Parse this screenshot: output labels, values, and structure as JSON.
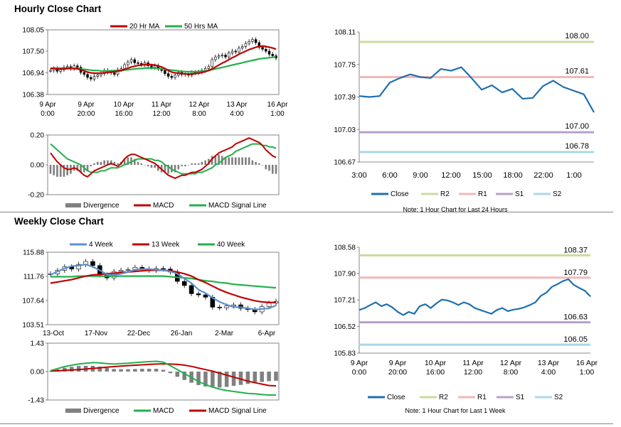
{
  "titles": {
    "hourly": "Hourly Close Chart",
    "weekly": "Weekly Close Chart"
  },
  "colors": {
    "ma_fast": "#c00000",
    "ma_slow": "#22b04b",
    "close": "#1f6fb0",
    "r2": "#c9dc9c",
    "r1": "#f2b8b8",
    "s1": "#b8a0cc",
    "s2": "#a8d8e8",
    "divergence": "#808080",
    "candle": "#000000"
  },
  "chart_data": [
    {
      "id": "hourly-price",
      "type": "candlestick",
      "legend": [
        "20 Hr MA",
        "50 Hrs MA"
      ],
      "yticks": [
        "108.05",
        "107.50",
        "106.94",
        "106.38"
      ],
      "ylim": [
        106.38,
        108.05
      ],
      "xticks": [
        [
          "9 Apr",
          "0:00"
        ],
        [
          "9 Apr",
          "20:00"
        ],
        [
          "10 Apr",
          "16:00"
        ],
        [
          "11 Apr",
          "12:00"
        ],
        [
          "12 Apr",
          "8:00"
        ],
        [
          "13 Apr",
          "4:00"
        ],
        [
          "16 Apr",
          "1:00"
        ]
      ],
      "close": [
        107.0,
        107.05,
        106.98,
        107.02,
        107.08,
        107.1,
        107.05,
        107.12,
        107.08,
        106.95,
        106.9,
        106.82,
        106.78,
        106.85,
        106.88,
        106.92,
        107.0,
        106.96,
        106.94,
        106.9,
        107.02,
        107.05,
        107.15,
        107.22,
        107.28,
        107.2,
        107.18,
        107.15,
        107.2,
        107.12,
        107.08,
        107.12,
        107.05,
        107.0,
        106.92,
        106.85,
        106.82,
        106.88,
        106.95,
        106.9,
        106.92,
        106.88,
        106.95,
        106.94,
        106.96,
        107.0,
        107.05,
        107.1,
        107.28,
        107.35,
        107.38,
        107.4,
        107.35,
        107.45,
        107.5,
        107.48,
        107.58,
        107.62,
        107.7,
        107.75,
        107.8,
        107.72,
        107.6,
        107.55,
        107.5,
        107.42,
        107.38,
        107.32
      ],
      "ma20": [
        107.05,
        107.05,
        107.04,
        107.04,
        107.04,
        107.05,
        107.05,
        107.05,
        107.04,
        107.02,
        106.99,
        106.96,
        106.94,
        106.93,
        106.93,
        106.93,
        106.94,
        106.95,
        106.96,
        106.97,
        106.98,
        107.0,
        107.03,
        107.06,
        107.09,
        107.11,
        107.13,
        107.14,
        107.15,
        107.15,
        107.15,
        107.14,
        107.12,
        107.09,
        107.05,
        107.0,
        106.96,
        106.94,
        106.93,
        106.92,
        106.91,
        106.91,
        106.91,
        106.92,
        106.93,
        106.95,
        106.97,
        107.0,
        107.04,
        107.09,
        107.14,
        107.19,
        107.23,
        107.28,
        107.33,
        107.37,
        107.42,
        107.46,
        107.5,
        107.54,
        107.57,
        107.6,
        107.62,
        107.63,
        107.62,
        107.6,
        107.58,
        107.55
      ],
      "ma50": [
        107.06,
        107.06,
        107.06,
        107.06,
        107.06,
        107.06,
        107.06,
        107.05,
        107.05,
        107.04,
        107.03,
        107.02,
        107.01,
        107.0,
        107.0,
        106.99,
        106.99,
        106.99,
        106.99,
        107.0,
        107.0,
        107.0,
        107.01,
        107.02,
        107.03,
        107.04,
        107.05,
        107.05,
        107.06,
        107.06,
        107.06,
        107.06,
        107.05,
        107.04,
        107.03,
        107.02,
        107.01,
        107.0,
        106.99,
        106.98,
        106.97,
        106.97,
        106.97,
        106.97,
        106.98,
        106.98,
        106.99,
        107.0,
        107.02,
        107.04,
        107.06,
        107.08,
        107.1,
        107.12,
        107.14,
        107.16,
        107.18,
        107.2,
        107.22,
        107.24,
        107.26,
        107.28,
        107.3,
        107.31,
        107.32,
        107.33,
        107.34,
        107.35
      ]
    },
    {
      "id": "hourly-macd",
      "type": "macd",
      "legend": [
        "Divergence",
        "MACD",
        "MACD Signal Line"
      ],
      "yticks": [
        "0.20",
        "0.00",
        "-0.20"
      ],
      "ylim": [
        -0.2,
        0.2
      ],
      "macd": [
        0.08,
        0.05,
        0.02,
        0.0,
        -0.02,
        -0.03,
        -0.03,
        -0.02,
        -0.03,
        -0.05,
        -0.07,
        -0.08,
        -0.06,
        -0.04,
        -0.03,
        -0.02,
        -0.01,
        0.0,
        0.01,
        0.0,
        -0.01,
        0.01,
        0.04,
        0.06,
        0.07,
        0.07,
        0.06,
        0.05,
        0.04,
        0.03,
        0.02,
        0.01,
        -0.01,
        -0.03,
        -0.05,
        -0.07,
        -0.08,
        -0.09,
        -0.08,
        -0.07,
        -0.07,
        -0.06,
        -0.05,
        -0.05,
        -0.04,
        -0.03,
        -0.01,
        0.01,
        0.04,
        0.06,
        0.08,
        0.09,
        0.1,
        0.11,
        0.12,
        0.14,
        0.15,
        0.16,
        0.17,
        0.18,
        0.17,
        0.16,
        0.15,
        0.13,
        0.1,
        0.08,
        0.06,
        0.05
      ],
      "signal": [
        0.14,
        0.12,
        0.1,
        0.08,
        0.06,
        0.04,
        0.03,
        0.02,
        0.01,
        0.0,
        -0.02,
        -0.04,
        -0.05,
        -0.05,
        -0.05,
        -0.04,
        -0.04,
        -0.03,
        -0.02,
        -0.02,
        -0.02,
        -0.01,
        0.0,
        0.01,
        0.02,
        0.03,
        0.04,
        0.04,
        0.04,
        0.04,
        0.04,
        0.03,
        0.03,
        0.02,
        0.0,
        -0.01,
        -0.03,
        -0.04,
        -0.05,
        -0.06,
        -0.06,
        -0.06,
        -0.06,
        -0.06,
        -0.05,
        -0.05,
        -0.04,
        -0.03,
        -0.02,
        0.0,
        0.01,
        0.03,
        0.05,
        0.06,
        0.07,
        0.09,
        0.1,
        0.11,
        0.12,
        0.13,
        0.14,
        0.14,
        0.14,
        0.13,
        0.13,
        0.12,
        0.12,
        0.11
      ],
      "divergence": [
        -0.06,
        -0.07,
        -0.08,
        -0.08,
        -0.08,
        -0.07,
        -0.06,
        -0.04,
        -0.04,
        -0.05,
        -0.05,
        -0.04,
        -0.01,
        0.01,
        0.02,
        0.02,
        0.03,
        0.03,
        0.03,
        0.02,
        0.01,
        0.02,
        0.04,
        0.05,
        0.05,
        0.04,
        0.02,
        0.01,
        0.0,
        -0.01,
        -0.02,
        -0.02,
        -0.04,
        -0.05,
        -0.05,
        -0.06,
        -0.05,
        -0.05,
        -0.03,
        -0.01,
        -0.01,
        0.0,
        0.01,
        0.01,
        0.01,
        0.02,
        0.03,
        0.04,
        0.06,
        0.06,
        0.07,
        0.06,
        0.05,
        0.05,
        0.05,
        0.05,
        0.05,
        0.05,
        0.05,
        0.05,
        0.03,
        0.02,
        0.01,
        0.0,
        -0.03,
        -0.04,
        -0.06,
        -0.06
      ]
    },
    {
      "id": "hourly-pivot",
      "type": "line",
      "yticks": [
        "108.11",
        "107.75",
        "107.39",
        "107.03",
        "106.67"
      ],
      "ylim": [
        106.67,
        108.11
      ],
      "xticks": [
        "3:00",
        "6:00",
        "9:00",
        "12:00",
        "15:00",
        "18:00",
        "22:00",
        "1:00"
      ],
      "levels": [
        {
          "key": "R2",
          "value": 108.0,
          "label": "108.00"
        },
        {
          "key": "R1",
          "value": 107.61,
          "label": "107.61"
        },
        {
          "key": "S1",
          "value": 107.0,
          "label": "107.00"
        },
        {
          "key": "S2",
          "value": 106.78,
          "label": "106.78"
        }
      ],
      "close": [
        107.4,
        107.39,
        107.4,
        107.55,
        107.6,
        107.64,
        107.61,
        107.6,
        107.7,
        107.68,
        107.72,
        107.6,
        107.47,
        107.52,
        107.44,
        107.48,
        107.37,
        107.38,
        107.51,
        107.57,
        107.5,
        107.46,
        107.42,
        107.22
      ],
      "legend": [
        "Close",
        "R2",
        "R1",
        "S1",
        "S2"
      ],
      "note": "Note: 1 Hour Chart for Last 24 Hours"
    },
    {
      "id": "weekly-price",
      "type": "candlestick",
      "legend": [
        "4 Week",
        "13 Week",
        "40 Week"
      ],
      "yticks": [
        "115.88",
        "111.76",
        "107.64",
        "103.51"
      ],
      "ylim": [
        103.51,
        115.88
      ],
      "xticks": [
        "13-Oct",
        "17-Nov",
        "22-Dec",
        "26-Jan",
        "2-Mar",
        "6-Apr"
      ],
      "close": [
        112.2,
        112.8,
        113.4,
        113.0,
        113.8,
        114.3,
        113.6,
        112.0,
        111.5,
        112.6,
        112.8,
        112.9,
        113.3,
        113.0,
        112.8,
        113.1,
        113.0,
        112.5,
        110.9,
        110.2,
        108.8,
        108.6,
        108.2,
        106.5,
        106.4,
        106.7,
        106.9,
        106.3,
        106.1,
        105.7,
        106.6,
        107.2,
        107.5
      ],
      "wk4": [
        112.0,
        112.6,
        113.1,
        113.5,
        113.6,
        113.8,
        113.4,
        112.8,
        112.1,
        112.0,
        112.2,
        112.5,
        112.9,
        113.0,
        113.0,
        112.9,
        112.8,
        112.6,
        112.2,
        111.4,
        110.6,
        109.5,
        108.9,
        108.1,
        107.4,
        106.9,
        106.5,
        106.5,
        106.3,
        106.1,
        106.2,
        106.3,
        106.8
      ],
      "wk13": [
        110.6,
        110.8,
        111.0,
        111.2,
        111.5,
        111.8,
        112.0,
        112.1,
        112.2,
        112.3,
        112.4,
        112.5,
        112.6,
        112.7,
        112.8,
        112.8,
        112.8,
        112.7,
        112.5,
        112.2,
        111.8,
        111.2,
        110.7,
        110.1,
        109.5,
        109.0,
        108.6,
        108.2,
        107.9,
        107.6,
        107.4,
        107.3,
        107.3
      ],
      "wk40": [
        111.7,
        111.7,
        111.7,
        111.7,
        111.8,
        111.8,
        111.8,
        111.8,
        111.8,
        111.8,
        111.8,
        111.8,
        111.8,
        111.8,
        111.8,
        111.8,
        111.8,
        111.7,
        111.6,
        111.5,
        111.4,
        111.2,
        111.0,
        110.9,
        110.7,
        110.6,
        110.4,
        110.3,
        110.2,
        110.1,
        110.0,
        109.9,
        109.8
      ]
    },
    {
      "id": "weekly-macd",
      "type": "macd",
      "legend": [
        "Divergence",
        "MACD",
        "MACD Signal Line"
      ],
      "yticks": [
        "1.43",
        "0.00",
        "-1.43"
      ],
      "ylim": [
        -1.43,
        1.43
      ],
      "macd": [
        0.05,
        0.15,
        0.25,
        0.32,
        0.38,
        0.42,
        0.45,
        0.44,
        0.4,
        0.38,
        0.4,
        0.42,
        0.45,
        0.48,
        0.5,
        0.52,
        0.48,
        0.3,
        0.1,
        -0.1,
        -0.3,
        -0.5,
        -0.65,
        -0.78,
        -0.88,
        -0.95,
        -1.0,
        -1.05,
        -1.1,
        -1.12,
        -1.15,
        -1.18,
        -1.18
      ],
      "signal": [
        0.02,
        0.04,
        0.06,
        0.08,
        0.1,
        0.13,
        0.16,
        0.19,
        0.22,
        0.25,
        0.28,
        0.3,
        0.32,
        0.34,
        0.36,
        0.38,
        0.39,
        0.38,
        0.36,
        0.32,
        0.26,
        0.18,
        0.1,
        0.02,
        -0.08,
        -0.18,
        -0.28,
        -0.38,
        -0.48,
        -0.56,
        -0.63,
        -0.7,
        -0.72
      ],
      "divergence": [
        0.03,
        0.11,
        0.19,
        0.24,
        0.28,
        0.29,
        0.29,
        0.25,
        0.18,
        0.13,
        0.12,
        0.12,
        0.13,
        0.14,
        0.14,
        0.14,
        0.09,
        -0.08,
        -0.26,
        -0.42,
        -0.56,
        -0.68,
        -0.75,
        -0.8,
        -0.8,
        -0.77,
        -0.72,
        -0.67,
        -0.62,
        -0.56,
        -0.52,
        -0.48,
        -0.46
      ]
    },
    {
      "id": "weekly-pivot",
      "type": "line",
      "yticks": [
        "108.58",
        "107.90",
        "107.21",
        "106.52",
        "105.83"
      ],
      "ylim": [
        105.83,
        108.58
      ],
      "xticks": [
        [
          "9 Apr",
          "0:00"
        ],
        [
          "9 Apr",
          "20:00"
        ],
        [
          "10 Apr",
          "16:00"
        ],
        [
          "11 Apr",
          "12:00"
        ],
        [
          "12 Apr",
          "8:00"
        ],
        [
          "13 Apr",
          "4:00"
        ],
        [
          "16 Apr",
          "1:00"
        ]
      ],
      "levels": [
        {
          "key": "R2",
          "value": 108.37,
          "label": "108.37"
        },
        {
          "key": "R1",
          "value": 107.79,
          "label": "107.79"
        },
        {
          "key": "S1",
          "value": 106.63,
          "label": "106.63"
        },
        {
          "key": "S2",
          "value": 106.05,
          "label": "106.05"
        }
      ],
      "close": [
        106.95,
        107.0,
        107.08,
        107.15,
        107.05,
        107.1,
        107.02,
        106.9,
        106.82,
        106.9,
        106.85,
        107.05,
        107.1,
        107.0,
        107.12,
        107.22,
        107.2,
        107.15,
        107.08,
        107.15,
        107.1,
        107.0,
        106.95,
        106.9,
        106.85,
        106.95,
        107.0,
        106.92,
        106.96,
        106.98,
        107.02,
        107.08,
        107.15,
        107.32,
        107.4,
        107.55,
        107.62,
        107.7,
        107.75,
        107.6,
        107.52,
        107.45,
        107.3
      ],
      "legend": [
        "Close",
        "R2",
        "R1",
        "S1",
        "S2"
      ],
      "note": "Note: 1 Hour Chart for Last 1 Week"
    }
  ]
}
